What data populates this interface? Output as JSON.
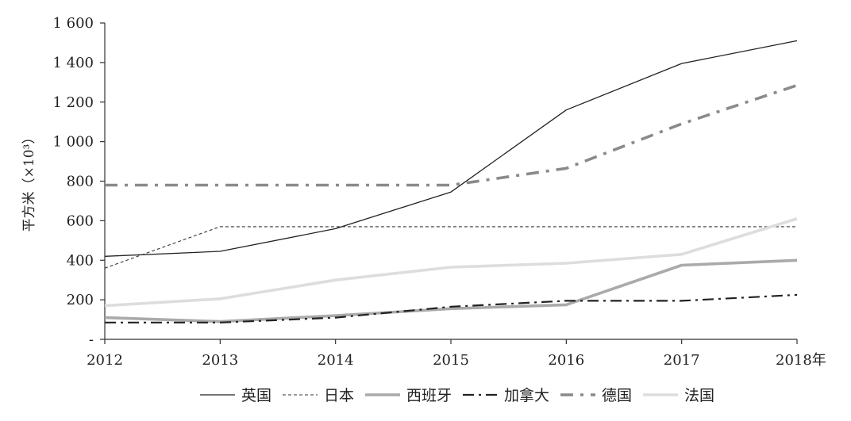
{
  "chart_data": {
    "type": "line",
    "title": "",
    "xlabel": "年",
    "ylabel": "平方米（×10³）",
    "x": [
      "2012",
      "2013",
      "2014",
      "2015",
      "2016",
      "2017",
      "2018"
    ],
    "x_tick_labels": [
      "2012",
      "2013",
      "2014",
      "2015",
      "2016",
      "2017",
      "2018年"
    ],
    "ylim": [
      0,
      1600
    ],
    "y_ticks": [
      0,
      200,
      400,
      600,
      800,
      1000,
      1200,
      1400,
      1600
    ],
    "y_tick_labels": [
      "-",
      "200",
      "400",
      "600",
      "800",
      "1 000",
      "1 200",
      "1 400",
      "1 600"
    ],
    "grid": false,
    "legend_position": "bottom",
    "series": [
      {
        "name": "英国",
        "values": [
          420,
          445,
          560,
          745,
          1160,
          1395,
          1510
        ],
        "color": "#222222",
        "style": "solid-thin"
      },
      {
        "name": "日本",
        "values": [
          360,
          570,
          570,
          570,
          570,
          570,
          570
        ],
        "color": "#333333",
        "style": "dashed-thin"
      },
      {
        "name": "西班牙",
        "values": [
          110,
          90,
          120,
          155,
          175,
          375,
          400
        ],
        "color": "#aaaaaa",
        "style": "solid-thick"
      },
      {
        "name": "加拿大",
        "values": [
          85,
          85,
          110,
          165,
          195,
          195,
          225
        ],
        "color": "#222222",
        "style": "dashdot-medium"
      },
      {
        "name": "德国",
        "values": [
          780,
          780,
          780,
          780,
          865,
          1090,
          1285
        ],
        "color": "#8a8a8a",
        "style": "dashdot-thick"
      },
      {
        "name": "法国",
        "values": [
          170,
          205,
          300,
          365,
          385,
          430,
          610
        ],
        "color": "#dddddd",
        "style": "solid-thick"
      }
    ]
  }
}
